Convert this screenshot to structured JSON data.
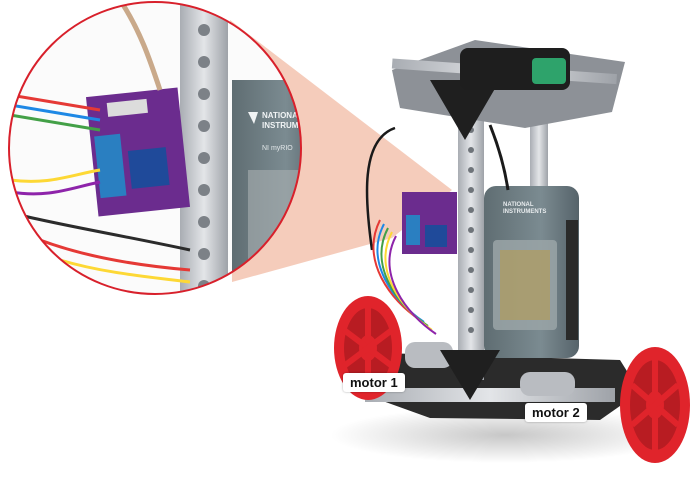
{
  "labels": {
    "motor1": "motor 1",
    "motor2": "motor 2"
  },
  "device": {
    "brand_line1": "NATIONAL",
    "brand_line2": "INSTRUMENTS",
    "model": "NI myRIO"
  },
  "colors": {
    "callout_ring": "#d8202b",
    "callout_beam": "#f4c7b4",
    "wheel_red": "#e0242b",
    "frame_metal": "#c9ccd1",
    "board_purple": "#6b2c8e",
    "device_body": "#6f7f85",
    "battery_green": "#2ea36b"
  }
}
